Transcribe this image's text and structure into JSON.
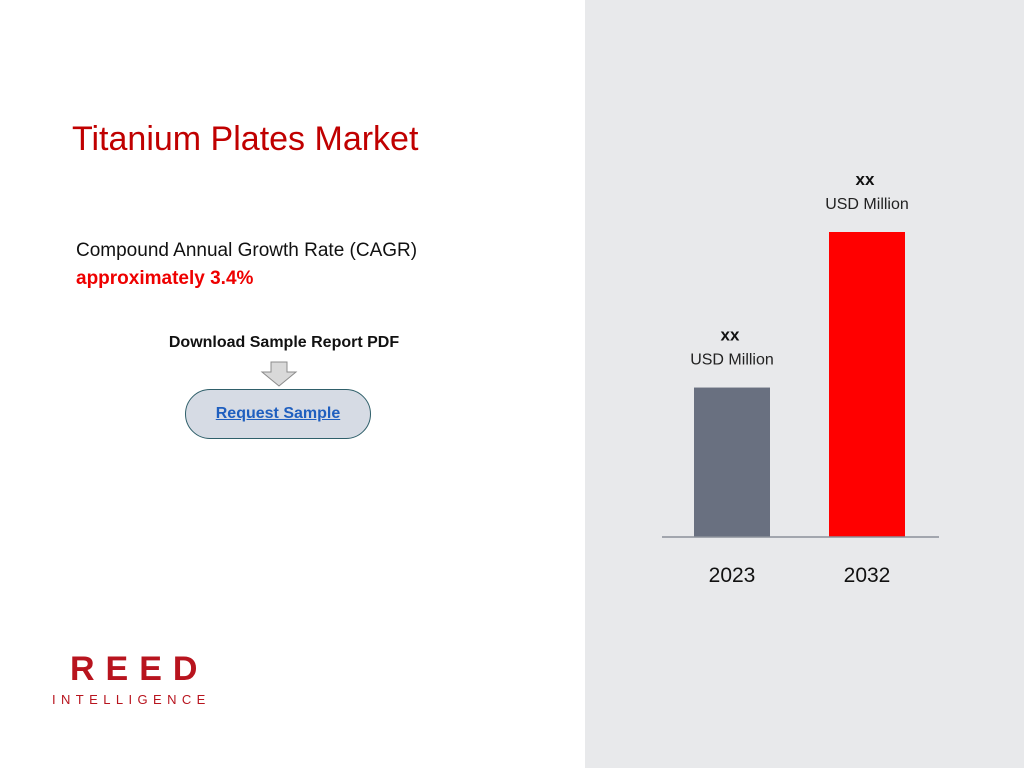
{
  "title": "Titanium Plates Market",
  "cagr": {
    "label": "Compound Annual Growth Rate (CAGR)",
    "value": "approximately 3.4%"
  },
  "download": {
    "label": "Download Sample Report PDF",
    "button_label": "Request Sample"
  },
  "logo": {
    "word": "REED",
    "sub": "INTELLIGENCE"
  },
  "colors": {
    "title": "#c00000",
    "accent": "#ee0000",
    "bar_2023": "#697080",
    "bar_2032": "#ff0000",
    "panel": "#e8e9eb"
  },
  "icons": {
    "arrow": "down-arrow-icon"
  },
  "chart_data": {
    "type": "bar",
    "categories": [
      "2023",
      "2032"
    ],
    "values": [
      0.49,
      1.0
    ],
    "data_labels": [
      {
        "value": "xx",
        "unit": "USD Million"
      },
      {
        "value": "xx",
        "unit": "USD Million"
      }
    ],
    "colors": [
      "#697080",
      "#ff0000"
    ],
    "grid": false,
    "legend": "none",
    "note": "relative bar heights only; actual values shown as xx"
  }
}
